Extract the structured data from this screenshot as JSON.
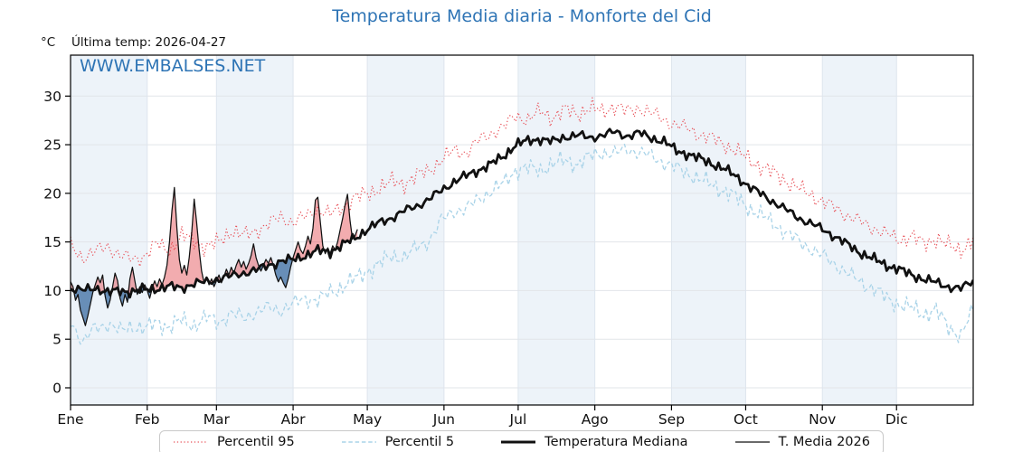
{
  "header": {
    "title": "Temperatura Media diaria - Monforte del Cid",
    "unit": "°C",
    "last_temp": "Última temp: 2026-04-27",
    "watermark": "WWW.EMBALSES.NET"
  },
  "legend": {
    "items": [
      {
        "label": "Percentil 95",
        "line": "dotted",
        "color": "#e8535a",
        "width": 1.3
      },
      {
        "label": "Percentil 5",
        "line": "dashed",
        "color": "#a9d3e8",
        "width": 1.4
      },
      {
        "label": "Temperatura Mediana",
        "line": "solid",
        "color": "#111111",
        "width": 3
      },
      {
        "label": "T. Media 2026",
        "line": "solid",
        "color": "#111111",
        "width": 1.2
      }
    ]
  },
  "chart_data": {
    "type": "line",
    "title": "Temperatura Media diaria - Monforte del Cid",
    "ylabel": "°C",
    "ylim": [
      -1.8,
      34.2
    ],
    "yticks": [
      0,
      5,
      10,
      15,
      20,
      25,
      30
    ],
    "x_unit": "day_of_year",
    "xlim_days": [
      0,
      365
    ],
    "month_labels": [
      "Ene",
      "Feb",
      "Mar",
      "Abr",
      "May",
      "Jun",
      "Jul",
      "Ago",
      "Sep",
      "Oct",
      "Nov",
      "Dic"
    ],
    "month_days": [
      31,
      28,
      31,
      30,
      31,
      30,
      31,
      31,
      30,
      31,
      30,
      31
    ],
    "grid": true,
    "legend_position": "bottom",
    "colors": {
      "band": "#edf3f9",
      "grid_h": "#e2e5e9",
      "grid_v": "#dee5ee",
      "spine": "#000000",
      "tick_label": "#111111",
      "title_blue": "#2e74b5",
      "fill_above": "rgba(229,89,95,0.50)",
      "fill_below": "rgba(52,103,156,0.72)"
    },
    "series": [
      {
        "name": "Percentil 95",
        "style": "dotted",
        "color": "#e8535a",
        "width": 1.2,
        "sample_step_days": 5,
        "noise_amplitude": 0.5,
        "values": [
          14.6,
          13.4,
          14.0,
          14.6,
          13.6,
          13.2,
          13.6,
          14.8,
          14.2,
          15.6,
          15.2,
          14.4,
          15.0,
          16.2,
          15.6,
          16.2,
          16.8,
          17.6,
          17.0,
          17.6,
          18.4,
          17.8,
          18.6,
          19.6,
          19.9,
          20.6,
          21.2,
          21.0,
          21.8,
          22.4,
          23.4,
          24.4,
          24.2,
          25.4,
          26.2,
          26.8,
          28.0,
          27.6,
          28.4,
          27.8,
          28.6,
          28.2,
          28.8,
          28.4,
          29.0,
          28.4,
          28.8,
          28.2,
          27.6,
          27.0,
          26.6,
          26.0,
          25.6,
          25.0,
          24.2,
          23.4,
          22.6,
          22.0,
          21.2,
          20.4,
          19.8,
          19.0,
          18.4,
          17.6,
          17.0,
          16.4,
          15.8,
          15.2,
          15.6,
          14.8,
          15.4,
          14.6,
          14.2,
          15.2
        ]
      },
      {
        "name": "Percentil 5",
        "style": "dashed",
        "color": "#a9d3e8",
        "width": 1.3,
        "sample_step_days": 5,
        "noise_amplitude": 0.5,
        "values": [
          7.0,
          4.6,
          6.2,
          6.6,
          5.8,
          6.4,
          6.0,
          6.8,
          6.2,
          7.0,
          6.4,
          7.2,
          6.8,
          7.6,
          7.2,
          7.8,
          8.2,
          8.0,
          8.6,
          9.2,
          9.0,
          9.8,
          10.4,
          11.2,
          12.0,
          12.8,
          13.6,
          13.4,
          14.4,
          15.2,
          17.2,
          18.2,
          18.4,
          19.4,
          20.2,
          21.0,
          22.4,
          22.6,
          22.4,
          23.0,
          23.4,
          23.0,
          23.8,
          24.2,
          24.0,
          24.6,
          24.2,
          23.8,
          23.2,
          22.6,
          22.0,
          21.4,
          20.8,
          20.2,
          19.4,
          18.4,
          17.6,
          16.8,
          15.8,
          15.0,
          14.2,
          13.4,
          12.6,
          11.6,
          10.8,
          10.2,
          9.2,
          8.6,
          8.2,
          7.6,
          8.0,
          6.2,
          5.4,
          8.0
        ]
      },
      {
        "name": "Temperatura Mediana",
        "style": "solid",
        "color": "#111111",
        "width": 2.8,
        "sample_step_days": 5,
        "noise_amplitude": 0.28,
        "values": [
          10.2,
          10.0,
          10.3,
          9.8,
          10.0,
          9.9,
          10.1,
          10.2,
          10.4,
          10.3,
          10.7,
          10.9,
          11.2,
          11.5,
          11.8,
          12.1,
          12.6,
          13.0,
          13.2,
          13.6,
          14.1,
          14.0,
          14.7,
          15.4,
          16.3,
          17.0,
          17.5,
          18.2,
          18.7,
          19.4,
          20.3,
          21.2,
          21.8,
          22.4,
          23.0,
          23.8,
          25.0,
          25.4,
          25.6,
          25.3,
          25.8,
          26.0,
          25.7,
          26.0,
          26.3,
          25.9,
          26.2,
          25.7,
          25.3,
          24.4,
          24.0,
          23.5,
          23.0,
          22.4,
          21.6,
          20.6,
          19.8,
          19.0,
          18.2,
          17.4,
          16.8,
          16.2,
          15.4,
          14.6,
          13.8,
          13.2,
          12.6,
          12.2,
          11.6,
          11.2,
          10.8,
          10.4,
          10.2,
          11.0
        ]
      },
      {
        "name": "T. Media 2026",
        "style": "solid",
        "color": "#111111",
        "width": 1.25,
        "sample_step_days": 1,
        "noise_amplitude": 0,
        "start_day": 0,
        "end_day": 116,
        "last_date": "2026-04-27",
        "fill_reference": "Temperatura Mediana",
        "values": [
          10.9,
          10.4,
          9.0,
          9.6,
          8.0,
          7.2,
          6.4,
          7.4,
          8.6,
          9.8,
          10.6,
          11.4,
          10.8,
          11.6,
          9.4,
          8.2,
          9.0,
          10.4,
          11.8,
          11.0,
          9.2,
          8.4,
          9.6,
          8.8,
          11.2,
          12.4,
          11.0,
          9.6,
          10.4,
          9.8,
          10.6,
          10.0,
          9.2,
          10.2,
          11.0,
          10.4,
          11.2,
          10.6,
          11.4,
          12.6,
          15.0,
          18.2,
          20.6,
          16.4,
          13.2,
          11.8,
          12.6,
          11.6,
          13.4,
          16.0,
          19.4,
          17.0,
          14.2,
          12.0,
          10.8,
          11.4,
          10.6,
          11.2,
          10.4,
          11.0,
          11.6,
          10.8,
          11.4,
          12.2,
          11.6,
          12.4,
          11.8,
          12.6,
          13.2,
          12.4,
          13.0,
          12.2,
          12.8,
          13.6,
          14.8,
          13.4,
          12.6,
          12.0,
          12.6,
          13.2,
          12.8,
          13.4,
          12.6,
          11.6,
          10.9,
          11.4,
          10.8,
          10.3,
          11.2,
          12.4,
          13.4,
          14.2,
          15.0,
          14.2,
          13.8,
          14.6,
          15.6,
          14.8,
          16.4,
          19.3,
          19.6,
          17.0,
          14.6,
          13.8,
          14.4,
          13.8,
          14.6,
          14.2,
          15.0,
          16.2,
          17.4,
          18.8,
          19.9,
          17.2,
          15.3,
          15.6,
          16.3
        ]
      }
    ]
  }
}
